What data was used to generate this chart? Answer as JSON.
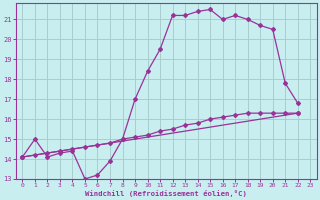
{
  "background_color": "#c8eef0",
  "grid_color": "#aacccc",
  "line_color": "#993399",
  "spine_color": "#993399",
  "xlim": [
    -0.5,
    23.5
  ],
  "ylim": [
    13,
    21.8
  ],
  "xticks": [
    0,
    1,
    2,
    3,
    4,
    5,
    6,
    7,
    8,
    9,
    10,
    11,
    12,
    13,
    14,
    15,
    16,
    17,
    18,
    19,
    20,
    21,
    22,
    23
  ],
  "yticks": [
    13,
    14,
    15,
    16,
    17,
    18,
    19,
    20,
    21
  ],
  "xlabel": "Windchill (Refroidissement éolien,°C)",
  "line1_x": [
    0,
    1,
    2,
    3,
    4,
    5,
    6,
    7,
    8,
    9,
    10,
    11,
    12,
    13,
    14,
    15,
    16,
    17,
    18,
    19,
    20,
    21,
    22
  ],
  "line1_y": [
    14.1,
    15.0,
    14.1,
    14.3,
    14.4,
    13.0,
    13.2,
    13.9,
    15.0,
    17.0,
    18.4,
    19.5,
    21.2,
    21.2,
    21.4,
    21.5,
    21.0,
    21.2,
    21.0,
    20.7,
    20.5,
    17.8,
    16.8
  ],
  "line2_x": [
    0,
    22
  ],
  "line2_y": [
    14.1,
    16.3
  ],
  "line3_x": [
    0,
    1,
    2,
    3,
    4,
    5,
    6,
    7,
    8,
    9,
    10,
    11,
    12,
    13,
    14,
    15,
    16,
    17,
    18,
    19,
    20,
    21,
    22
  ],
  "line3_y": [
    14.1,
    14.2,
    14.3,
    14.4,
    14.5,
    14.6,
    14.7,
    14.8,
    15.0,
    15.1,
    15.2,
    15.4,
    15.5,
    15.7,
    15.8,
    16.0,
    16.1,
    16.2,
    16.3,
    16.3,
    16.3,
    16.3,
    16.3
  ]
}
